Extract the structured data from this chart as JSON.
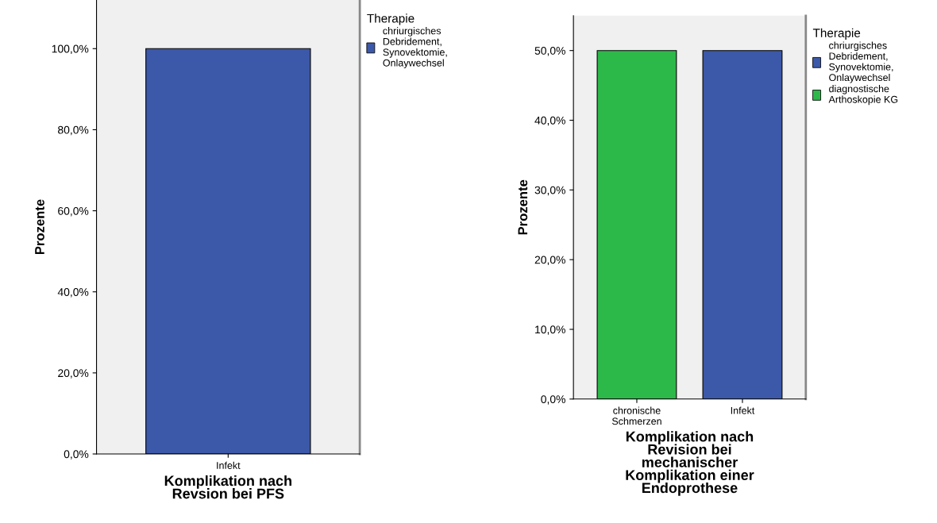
{
  "chart_data": [
    {
      "type": "bar",
      "xlabel": "Komplikation nach Revsion bei PFS",
      "ylabel": "Prozente",
      "legend_title": "Therapie",
      "legend": "top right",
      "grid": false,
      "categories": [
        "Infekt"
      ],
      "series": [
        {
          "name": "chriurgisches Debridement, Synovektomie, Onlaywechsel",
          "color": "#3c58a8",
          "values": [
            100
          ]
        }
      ],
      "ylim": [
        0,
        112
      ],
      "yticks": [
        {
          "value": 0,
          "label": "0,0%"
        },
        {
          "value": 20,
          "label": "20,0%"
        },
        {
          "value": 40,
          "label": "40,0%"
        },
        {
          "value": 60,
          "label": "60,0%"
        },
        {
          "value": 80,
          "label": "80,0%"
        },
        {
          "value": 100,
          "label": "100,0%"
        }
      ]
    },
    {
      "type": "bar",
      "xlabel": "Komplikation nach Revision bei mechanischer Komplikation einer Endoprothese",
      "ylabel": "Prozente",
      "legend_title": "Therapie",
      "legend": "top right",
      "grid": false,
      "categories": [
        "chronische Schmerzen",
        "Infekt"
      ],
      "series": [
        {
          "name": "chriurgisches Debridement, Synovektomie, Onlaywechsel",
          "color": "#3c58a8",
          "values": [
            null,
            50
          ]
        },
        {
          "name": "diagnostische Arthoskopie KG",
          "color": "#2db84a",
          "values": [
            50,
            null
          ]
        }
      ],
      "ylim": [
        0,
        55
      ],
      "yticks": [
        {
          "value": 0,
          "label": "0,0%"
        },
        {
          "value": 10,
          "label": "10,0%"
        },
        {
          "value": 20,
          "label": "20,0%"
        },
        {
          "value": 30,
          "label": "30,0%"
        },
        {
          "value": 40,
          "label": "40,0%"
        },
        {
          "value": 50,
          "label": "50,0%"
        }
      ]
    }
  ]
}
